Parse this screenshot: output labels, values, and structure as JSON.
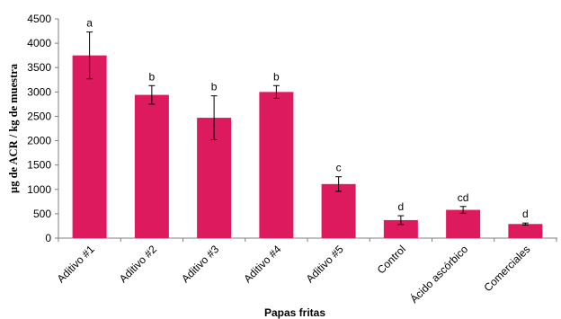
{
  "chart_data": {
    "type": "bar",
    "title": "",
    "xlabel": "Papas fritas",
    "ylabel": "µg de ACR / kg de muestra",
    "ylim": [
      0,
      4500
    ],
    "yticks": [
      0,
      500,
      1000,
      1500,
      2000,
      2500,
      3000,
      3500,
      4000,
      4500
    ],
    "grid": false,
    "legend": "none",
    "bar_color": "#de1a5f",
    "categories": [
      "Aditivo #1",
      "Aditivo #2",
      "Aditivo #3",
      "Aditivo #4",
      "Aditivo #5",
      "Control",
      "Ácido ascórbico",
      "Comerciales"
    ],
    "values": [
      3750,
      2940,
      2470,
      3000,
      1110,
      370,
      580,
      290
    ],
    "errors": [
      480,
      190,
      450,
      130,
      150,
      90,
      70,
      20
    ],
    "letters": [
      "a",
      "b",
      "b",
      "b",
      "c",
      "d",
      "cd",
      "d"
    ]
  }
}
